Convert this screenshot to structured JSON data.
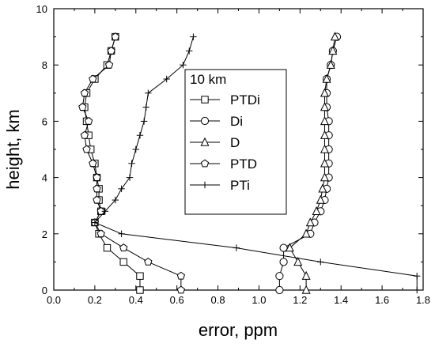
{
  "chart_data": {
    "type": "line",
    "title": "",
    "xlabel": "error, ppm",
    "ylabel": "height, km",
    "xlim": [
      0.0,
      1.8
    ],
    "ylim": [
      0,
      10
    ],
    "x_ticks": [
      "0.0",
      "0.2",
      "0.4",
      "0.6",
      "0.8",
      "1.0",
      "1.2",
      "1.4",
      "1.6",
      "1.8"
    ],
    "y_ticks": [
      "0",
      "2",
      "4",
      "6",
      "8",
      "10"
    ],
    "grid": false,
    "legend_title": "10 km",
    "legend_position": "center",
    "series": [
      {
        "name": "PTDi",
        "marker": "square",
        "points": [
          [
            0.42,
            0.0
          ],
          [
            0.42,
            0.5
          ],
          [
            0.34,
            1.0
          ],
          [
            0.26,
            1.5
          ],
          [
            0.22,
            2.0
          ],
          [
            0.2,
            2.4
          ],
          [
            0.23,
            2.8
          ],
          [
            0.22,
            3.2
          ],
          [
            0.22,
            3.6
          ],
          [
            0.21,
            4.0
          ],
          [
            0.2,
            4.5
          ],
          [
            0.18,
            5.0
          ],
          [
            0.17,
            5.5
          ],
          [
            0.16,
            6.0
          ],
          [
            0.15,
            6.5
          ],
          [
            0.16,
            7.0
          ],
          [
            0.2,
            7.5
          ],
          [
            0.26,
            8.0
          ],
          [
            0.28,
            8.5
          ],
          [
            0.3,
            9.0
          ]
        ]
      },
      {
        "name": "Di",
        "marker": "circle",
        "points": [
          [
            1.1,
            0.0
          ],
          [
            1.1,
            0.5
          ],
          [
            1.12,
            1.0
          ],
          [
            1.12,
            1.5
          ],
          [
            1.25,
            2.0
          ],
          [
            1.27,
            2.4
          ],
          [
            1.3,
            2.8
          ],
          [
            1.32,
            3.2
          ],
          [
            1.33,
            3.6
          ],
          [
            1.34,
            4.0
          ],
          [
            1.34,
            4.5
          ],
          [
            1.34,
            5.0
          ],
          [
            1.34,
            5.5
          ],
          [
            1.34,
            6.0
          ],
          [
            1.33,
            6.5
          ],
          [
            1.33,
            7.0
          ],
          [
            1.33,
            7.5
          ],
          [
            1.35,
            8.0
          ],
          [
            1.36,
            8.5
          ],
          [
            1.38,
            9.0
          ]
        ]
      },
      {
        "name": "D",
        "marker": "triangle",
        "points": [
          [
            1.23,
            0.0
          ],
          [
            1.23,
            0.5
          ],
          [
            1.19,
            1.0
          ],
          [
            1.15,
            1.5
          ],
          [
            1.23,
            2.0
          ],
          [
            1.25,
            2.4
          ],
          [
            1.28,
            2.8
          ],
          [
            1.3,
            3.2
          ],
          [
            1.31,
            3.6
          ],
          [
            1.32,
            4.0
          ],
          [
            1.32,
            4.5
          ],
          [
            1.32,
            5.0
          ],
          [
            1.32,
            5.5
          ],
          [
            1.32,
            6.0
          ],
          [
            1.32,
            6.5
          ],
          [
            1.32,
            7.0
          ],
          [
            1.33,
            7.5
          ],
          [
            1.35,
            8.0
          ],
          [
            1.36,
            8.5
          ],
          [
            1.37,
            9.0
          ]
        ]
      },
      {
        "name": "PTD",
        "marker": "pentagon",
        "points": [
          [
            0.62,
            0.0
          ],
          [
            0.62,
            0.5
          ],
          [
            0.46,
            1.0
          ],
          [
            0.34,
            1.5
          ],
          [
            0.23,
            2.0
          ],
          [
            0.2,
            2.4
          ],
          [
            0.23,
            2.8
          ],
          [
            0.21,
            3.2
          ],
          [
            0.21,
            3.6
          ],
          [
            0.21,
            4.0
          ],
          [
            0.19,
            4.5
          ],
          [
            0.16,
            5.0
          ],
          [
            0.15,
            5.5
          ],
          [
            0.17,
            6.0
          ],
          [
            0.14,
            6.5
          ],
          [
            0.15,
            7.0
          ],
          [
            0.19,
            7.5
          ],
          [
            0.27,
            8.0
          ],
          [
            0.28,
            8.5
          ],
          [
            0.3,
            9.0
          ]
        ]
      },
      {
        "name": "PTi",
        "marker": "plus",
        "points": [
          [
            1.77,
            0.0
          ],
          [
            1.77,
            0.5
          ],
          [
            1.3,
            1.0
          ],
          [
            0.89,
            1.5
          ],
          [
            0.33,
            2.0
          ],
          [
            0.2,
            2.4
          ],
          [
            0.25,
            2.8
          ],
          [
            0.3,
            3.2
          ],
          [
            0.33,
            3.6
          ],
          [
            0.37,
            4.0
          ],
          [
            0.38,
            4.5
          ],
          [
            0.4,
            5.0
          ],
          [
            0.42,
            5.5
          ],
          [
            0.44,
            6.0
          ],
          [
            0.45,
            6.5
          ],
          [
            0.46,
            7.0
          ],
          [
            0.55,
            7.5
          ],
          [
            0.63,
            8.0
          ],
          [
            0.66,
            8.5
          ],
          [
            0.68,
            9.0
          ]
        ]
      }
    ]
  }
}
